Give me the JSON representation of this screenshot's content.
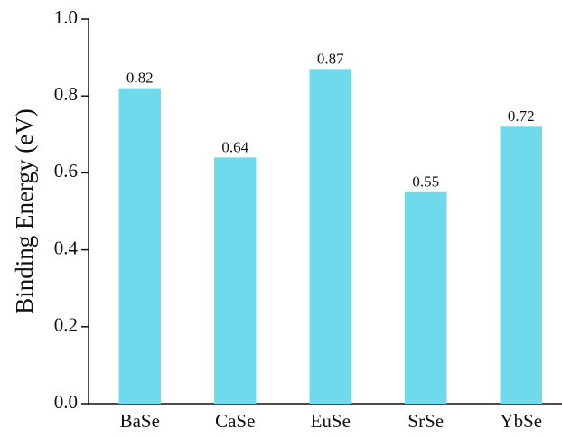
{
  "chart_data": {
    "type": "bar",
    "y_label": "Binding Energy (eV)",
    "categories": [
      "BaSe",
      "CaSe",
      "EuSe",
      "SrSe",
      "YbSe"
    ],
    "values": [
      0.82,
      0.64,
      0.87,
      0.55,
      0.72
    ],
    "color": "#6fdaec",
    "ylim": [
      0,
      1
    ],
    "yticks": [
      {
        "value": 0,
        "label": "0.0"
      },
      0.2,
      0.4,
      0.6,
      0.8,
      {
        "value": 1,
        "label": "1.0"
      }
    ],
    "grid": false
  }
}
